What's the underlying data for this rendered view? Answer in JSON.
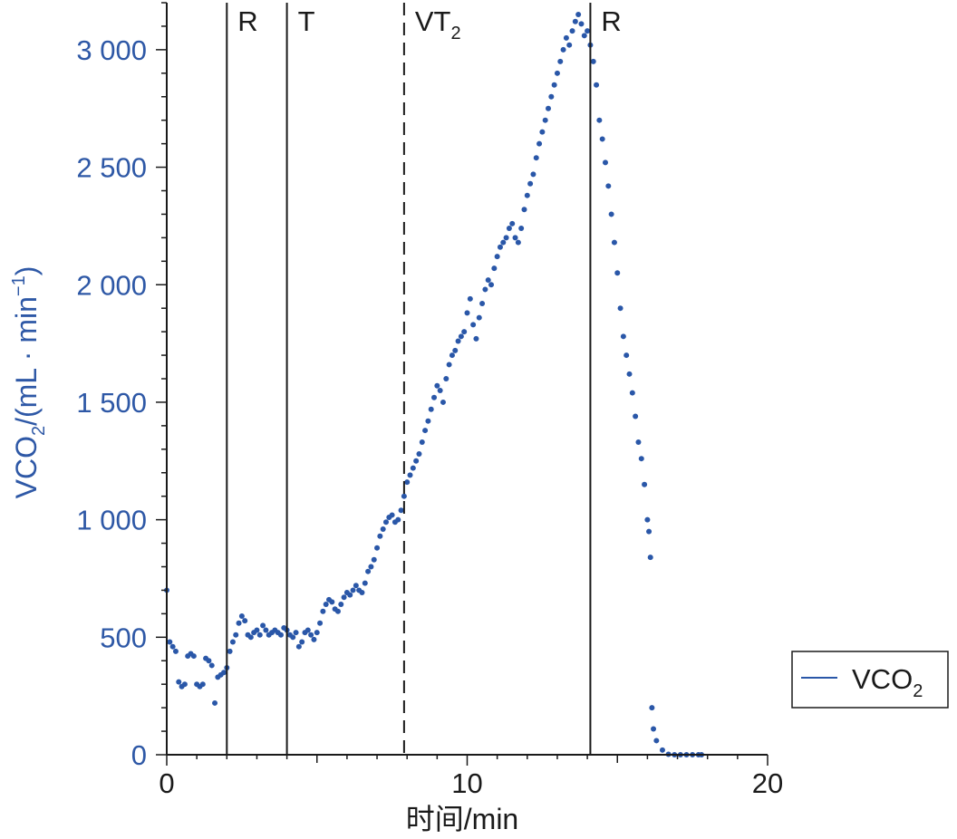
{
  "chart_data": {
    "type": "scatter",
    "title": "",
    "xlabel": "时间/min",
    "ylabel": "VCO",
    "ylabel_sub": "2",
    "ylabel_rest": "/(mL · min",
    "ylabel_sup": "−1",
    "ylabel_end": ")",
    "xlim": [
      0,
      20
    ],
    "ylim": [
      0,
      3200
    ],
    "x_ticks": [
      0,
      10,
      20
    ],
    "x_tick_labels": [
      "0",
      "10",
      "20"
    ],
    "y_ticks": [
      0,
      500,
      1000,
      1500,
      2000,
      2500,
      3000
    ],
    "y_tick_labels": [
      "0",
      "500",
      "1 000",
      "1 500",
      "2 000",
      "2 500",
      "3 000"
    ],
    "grid": false,
    "legend_position": "bottom-right, outside plot",
    "colors": {
      "series": "#2a57a8",
      "axis_label": "#2e58a6",
      "lines": "#1a1a1a"
    },
    "markers": [
      {
        "x": 2.0,
        "label": "R",
        "sub": "",
        "style": "solid"
      },
      {
        "x": 4.0,
        "label": "T",
        "sub": "",
        "style": "solid"
      },
      {
        "x": 7.9,
        "label": "VT",
        "sub": "2",
        "style": "dashed"
      },
      {
        "x": 14.1,
        "label": "R",
        "sub": "",
        "style": "solid"
      }
    ],
    "series": [
      {
        "name": "VCO",
        "name_sub": "2",
        "points": [
          [
            0.0,
            700
          ],
          [
            0.1,
            480
          ],
          [
            0.2,
            460
          ],
          [
            0.3,
            440
          ],
          [
            0.4,
            310
          ],
          [
            0.5,
            290
          ],
          [
            0.6,
            300
          ],
          [
            0.7,
            420
          ],
          [
            0.8,
            430
          ],
          [
            0.9,
            420
          ],
          [
            1.0,
            300
          ],
          [
            1.1,
            290
          ],
          [
            1.2,
            300
          ],
          [
            1.3,
            410
          ],
          [
            1.4,
            400
          ],
          [
            1.5,
            380
          ],
          [
            1.6,
            220
          ],
          [
            1.7,
            330
          ],
          [
            1.8,
            340
          ],
          [
            1.9,
            350
          ],
          [
            2.0,
            370
          ],
          [
            2.1,
            440
          ],
          [
            2.2,
            480
          ],
          [
            2.3,
            510
          ],
          [
            2.4,
            560
          ],
          [
            2.5,
            590
          ],
          [
            2.6,
            570
          ],
          [
            2.7,
            510
          ],
          [
            2.8,
            500
          ],
          [
            2.9,
            520
          ],
          [
            3.0,
            530
          ],
          [
            3.1,
            510
          ],
          [
            3.2,
            550
          ],
          [
            3.3,
            530
          ],
          [
            3.4,
            510
          ],
          [
            3.5,
            520
          ],
          [
            3.6,
            530
          ],
          [
            3.7,
            520
          ],
          [
            3.8,
            510
          ],
          [
            3.9,
            540
          ],
          [
            4.0,
            530
          ],
          [
            4.1,
            510
          ],
          [
            4.2,
            500
          ],
          [
            4.3,
            520
          ],
          [
            4.4,
            460
          ],
          [
            4.5,
            480
          ],
          [
            4.6,
            520
          ],
          [
            4.7,
            530
          ],
          [
            4.8,
            510
          ],
          [
            4.9,
            490
          ],
          [
            5.0,
            520
          ],
          [
            5.1,
            560
          ],
          [
            5.2,
            610
          ],
          [
            5.3,
            640
          ],
          [
            5.4,
            660
          ],
          [
            5.5,
            650
          ],
          [
            5.6,
            620
          ],
          [
            5.7,
            610
          ],
          [
            5.8,
            640
          ],
          [
            5.9,
            670
          ],
          [
            6.0,
            690
          ],
          [
            6.1,
            680
          ],
          [
            6.2,
            700
          ],
          [
            6.3,
            720
          ],
          [
            6.4,
            700
          ],
          [
            6.5,
            690
          ],
          [
            6.6,
            730
          ],
          [
            6.7,
            780
          ],
          [
            6.8,
            800
          ],
          [
            6.9,
            830
          ],
          [
            7.0,
            880
          ],
          [
            7.1,
            930
          ],
          [
            7.2,
            960
          ],
          [
            7.3,
            990
          ],
          [
            7.4,
            1010
          ],
          [
            7.5,
            1020
          ],
          [
            7.6,
            990
          ],
          [
            7.7,
            1000
          ],
          [
            7.8,
            1040
          ],
          [
            7.9,
            1100
          ],
          [
            8.0,
            1160
          ],
          [
            8.1,
            1190
          ],
          [
            8.2,
            1220
          ],
          [
            8.3,
            1250
          ],
          [
            8.4,
            1280
          ],
          [
            8.5,
            1330
          ],
          [
            8.6,
            1380
          ],
          [
            8.7,
            1420
          ],
          [
            8.8,
            1470
          ],
          [
            8.9,
            1520
          ],
          [
            9.0,
            1570
          ],
          [
            9.1,
            1550
          ],
          [
            9.2,
            1500
          ],
          [
            9.3,
            1600
          ],
          [
            9.4,
            1660
          ],
          [
            9.5,
            1700
          ],
          [
            9.6,
            1720
          ],
          [
            9.7,
            1760
          ],
          [
            9.8,
            1780
          ],
          [
            9.9,
            1800
          ],
          [
            10.0,
            1880
          ],
          [
            10.1,
            1940
          ],
          [
            10.2,
            1830
          ],
          [
            10.3,
            1770
          ],
          [
            10.4,
            1860
          ],
          [
            10.5,
            1920
          ],
          [
            10.6,
            1980
          ],
          [
            10.7,
            2020
          ],
          [
            10.8,
            2000
          ],
          [
            10.9,
            2070
          ],
          [
            11.0,
            2120
          ],
          [
            11.1,
            2160
          ],
          [
            11.2,
            2180
          ],
          [
            11.3,
            2200
          ],
          [
            11.4,
            2240
          ],
          [
            11.5,
            2260
          ],
          [
            11.6,
            2200
          ],
          [
            11.7,
            2180
          ],
          [
            11.8,
            2240
          ],
          [
            11.9,
            2320
          ],
          [
            12.0,
            2380
          ],
          [
            12.1,
            2430
          ],
          [
            12.2,
            2470
          ],
          [
            12.3,
            2540
          ],
          [
            12.4,
            2600
          ],
          [
            12.5,
            2650
          ],
          [
            12.6,
            2700
          ],
          [
            12.7,
            2750
          ],
          [
            12.8,
            2800
          ],
          [
            12.9,
            2850
          ],
          [
            13.0,
            2900
          ],
          [
            13.1,
            2950
          ],
          [
            13.2,
            3000
          ],
          [
            13.3,
            3050
          ],
          [
            13.4,
            3020
          ],
          [
            13.5,
            3080
          ],
          [
            13.6,
            3120
          ],
          [
            13.7,
            3150
          ],
          [
            13.8,
            3110
          ],
          [
            13.9,
            3060
          ],
          [
            14.0,
            3080
          ],
          [
            14.1,
            3020
          ],
          [
            14.2,
            2950
          ],
          [
            14.3,
            2850
          ],
          [
            14.4,
            2700
          ],
          [
            14.5,
            2620
          ],
          [
            14.6,
            2520
          ],
          [
            14.7,
            2420
          ],
          [
            14.8,
            2300
          ],
          [
            14.9,
            2180
          ],
          [
            15.0,
            2050
          ],
          [
            15.1,
            1900
          ],
          [
            15.2,
            1780
          ],
          [
            15.3,
            1700
          ],
          [
            15.4,
            1620
          ],
          [
            15.5,
            1540
          ],
          [
            15.6,
            1440
          ],
          [
            15.7,
            1330
          ],
          [
            15.8,
            1260
          ],
          [
            15.9,
            1150
          ],
          [
            16.0,
            1000
          ],
          [
            16.05,
            950
          ],
          [
            16.1,
            840
          ],
          [
            16.15,
            200
          ],
          [
            16.2,
            110
          ],
          [
            16.3,
            60
          ],
          [
            16.5,
            20
          ],
          [
            16.7,
            2
          ],
          [
            16.9,
            0
          ],
          [
            17.1,
            0
          ],
          [
            17.3,
            0
          ],
          [
            17.5,
            0
          ],
          [
            17.7,
            0
          ],
          [
            17.8,
            0
          ]
        ]
      }
    ]
  }
}
